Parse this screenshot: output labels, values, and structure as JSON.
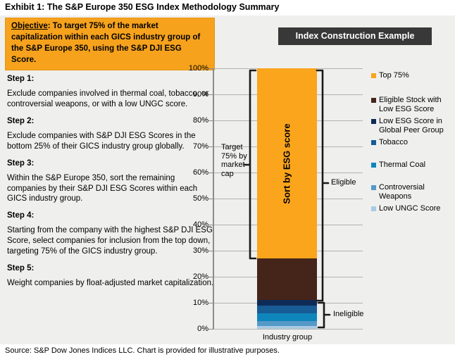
{
  "title": "Exhibit 1: The S&P Europe 350 ESG Index Methodology Summary",
  "objective": {
    "label": "Objective",
    "text": ": To target 75% of the market capitalization within each GICS industry group of the S&P Europe 350, using the S&P DJI ESG Score."
  },
  "steps": [
    {
      "heading": "Step 1:",
      "text": "Exclude companies involved in thermal coal, tobacco, or controversial weapons, or with a low UNGC score."
    },
    {
      "heading": "Step 2:",
      "text": "Exclude companies with S&P DJI ESG Scores in the bottom 25% of their GICS industry group globally."
    },
    {
      "heading": "Step 3:",
      "text": "Within the S&P Europe 350, sort the remaining companies by their S&P DJI ESG Scores within each GICS industry group."
    },
    {
      "heading": "Step 4:",
      "text": "Starting from the company with the highest S&P DJI ESG Score, select companies for inclusion from the top down, targeting 75% of the GICS industry group."
    },
    {
      "heading": "Step 5:",
      "text": "Weight companies by float-adjusted market capitalization."
    }
  ],
  "chart_header": "Index Construction Example",
  "chart_data": {
    "type": "bar",
    "stacked": true,
    "title": "Index Construction Example",
    "categories": [
      "Industry group"
    ],
    "xlabel": "Industry group",
    "ylabel": "",
    "ylim": [
      0,
      100
    ],
    "grid": true,
    "legend_position": "right",
    "yticks": [
      "100%",
      "90%",
      "80%",
      "70%",
      "60%",
      "50%",
      "40%",
      "30%",
      "20%",
      "10%",
      "0%"
    ],
    "series": [
      {
        "name": "Top 75%",
        "value": 73,
        "color": "#faa51c"
      },
      {
        "name": "Eligible Stock with Low ESG Score",
        "value": 16,
        "color": "#45241a"
      },
      {
        "name": "Low ESG Score in Global Peer Group",
        "value": 2,
        "color": "#0e2b57"
      },
      {
        "name": "Tobacco",
        "value": 3,
        "color": "#175c95"
      },
      {
        "name": "Thermal Coal",
        "value": 3,
        "color": "#0f86bb"
      },
      {
        "name": "Controversial Weapons",
        "value": 2,
        "color": "#5599c8"
      },
      {
        "name": "Low UNGC Score",
        "value": 1,
        "color": "#a9cbe3"
      }
    ],
    "bar_inner_label": "Sort by ESG score",
    "annotations": {
      "target": "Target 75% by market cap",
      "eligible": "Eligible",
      "ineligible": "Ineligible"
    }
  },
  "source": "Source: S&P Dow Jones Indices LLC.  Chart is provided for illustrative purposes.",
  "colors": {
    "panel_bg": "#efefee",
    "objective_bg": "#f6a21d",
    "header_box_bg": "#383838",
    "gridline": "#b2b2b2",
    "axis": "#8c8c8c"
  }
}
